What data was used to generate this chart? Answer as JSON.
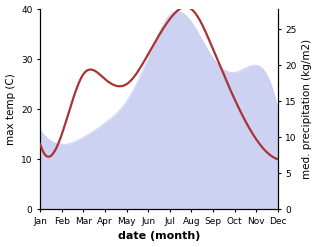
{
  "months": [
    "Jan",
    "Feb",
    "Mar",
    "Apr",
    "May",
    "Jun",
    "Jul",
    "Aug",
    "Sep",
    "Oct",
    "Nov",
    "Dec"
  ],
  "max_temp": [
    13,
    15,
    27,
    26,
    25,
    31,
    38,
    40,
    32,
    22,
    14,
    10
  ],
  "precipitation": [
    11,
    9,
    10,
    12,
    15,
    21,
    27,
    26,
    21,
    19,
    20,
    14
  ],
  "temp_color": "#aa3333",
  "precip_fill_color": "#c5caf0",
  "ylabel_left": "max temp (C)",
  "ylabel_right": "med. precipitation (kg/m2)",
  "xlabel": "date (month)",
  "ylim_left": [
    0,
    40
  ],
  "ylim_right": [
    0,
    27.8
  ],
  "yticks_left": [
    0,
    10,
    20,
    30,
    40
  ],
  "yticks_right": [
    0,
    5,
    10,
    15,
    20,
    25
  ],
  "label_fontsize": 7.5,
  "tick_fontsize": 6.5,
  "xlabel_fontsize": 8,
  "linewidth_temp": 1.6,
  "fig_width": 3.18,
  "fig_height": 2.47
}
